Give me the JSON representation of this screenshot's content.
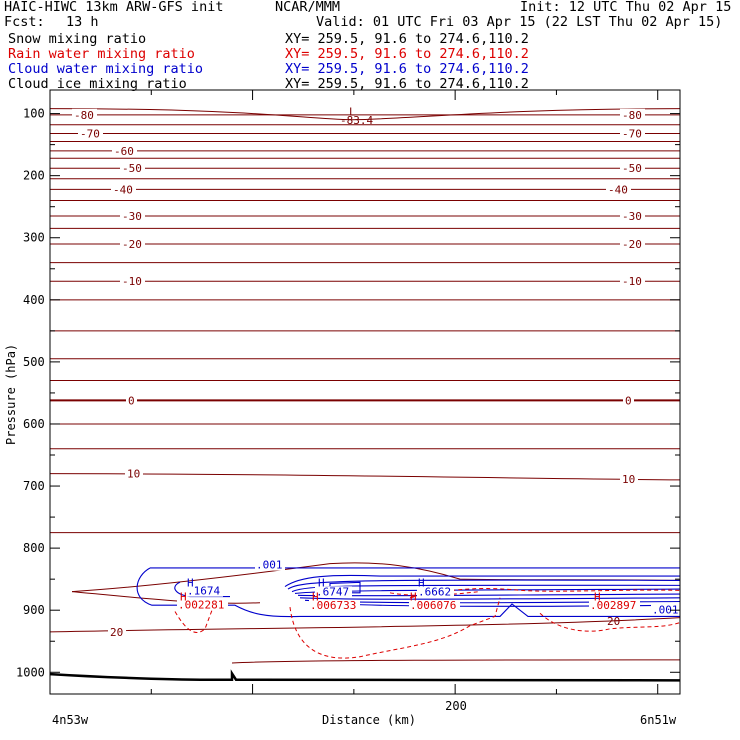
{
  "header": {
    "model": "HAIC-HIWC 13km ARW-GFS init",
    "org": "NCAR/MMM",
    "init": "Init: 12 UTC Thu 02 Apr 15",
    "fcst_label": "Fcst:",
    "fcst_value": "13 h",
    "valid": "Valid: 01 UTC Fri 03 Apr 15 (22 LST Thu 02 Apr 15)",
    "fields": [
      {
        "name": "Snow mixing ratio",
        "xy": "XY= 259.5, 91.6 to 274.6,110.2",
        "color": "#000000"
      },
      {
        "name": "Rain water mixing ratio",
        "xy": "XY= 259.5, 91.6 to 274.6,110.2",
        "color": "#dd0000"
      },
      {
        "name": "Cloud water mixing ratio",
        "xy": "XY= 259.5, 91.6 to 274.6,110.2",
        "color": "#0000cc"
      },
      {
        "name": "Cloud ice mixing ratio",
        "xy": "XY= 259.5, 91.6 to 274.6,110.2",
        "color": "#000000"
      }
    ]
  },
  "chart_data": {
    "type": "line",
    "xlabel": "Distance (km)",
    "ylabel": "Pressure (hPa)",
    "xlim": [
      0,
      311
    ],
    "ylim": [
      1035,
      62
    ],
    "x_ticks": [
      200
    ],
    "y_ticks": [
      100,
      200,
      300,
      400,
      500,
      600,
      700,
      800,
      900,
      1000
    ],
    "x_endpoints": {
      "left": "4n53w",
      "right": "6n51w"
    },
    "colors": {
      "temperature": "#7a0000",
      "rain": "#dd0000",
      "cloud": "#0000cc",
      "terrain": "#000000"
    },
    "temperature_isotherms": [
      {
        "label": "-83.4",
        "p": 110,
        "note": "L"
      },
      {
        "label": "-80",
        "p": 102
      },
      {
        "label": "-70",
        "p": 132
      },
      {
        "label": "-60",
        "p": 160
      },
      {
        "label": "-50",
        "p": 188
      },
      {
        "label": "-40",
        "p": 222
      },
      {
        "label": "-30",
        "p": 265
      },
      {
        "label": "-20",
        "p": 310
      },
      {
        "label": "-10",
        "p": 370
      },
      {
        "label": "0",
        "p": 562
      },
      {
        "label": "10",
        "p": 685
      },
      {
        "label": "20",
        "p": 935
      }
    ],
    "rain_labels": [
      ".002281",
      ".006733",
      ".006076",
      ".002897"
    ],
    "cloud_labels": [
      ".001",
      ".1674",
      ".6747",
      ".6662",
      ".001"
    ],
    "extrema_marks": [
      "L",
      "H",
      "H",
      "H",
      "H",
      "H",
      "H",
      "H"
    ]
  }
}
